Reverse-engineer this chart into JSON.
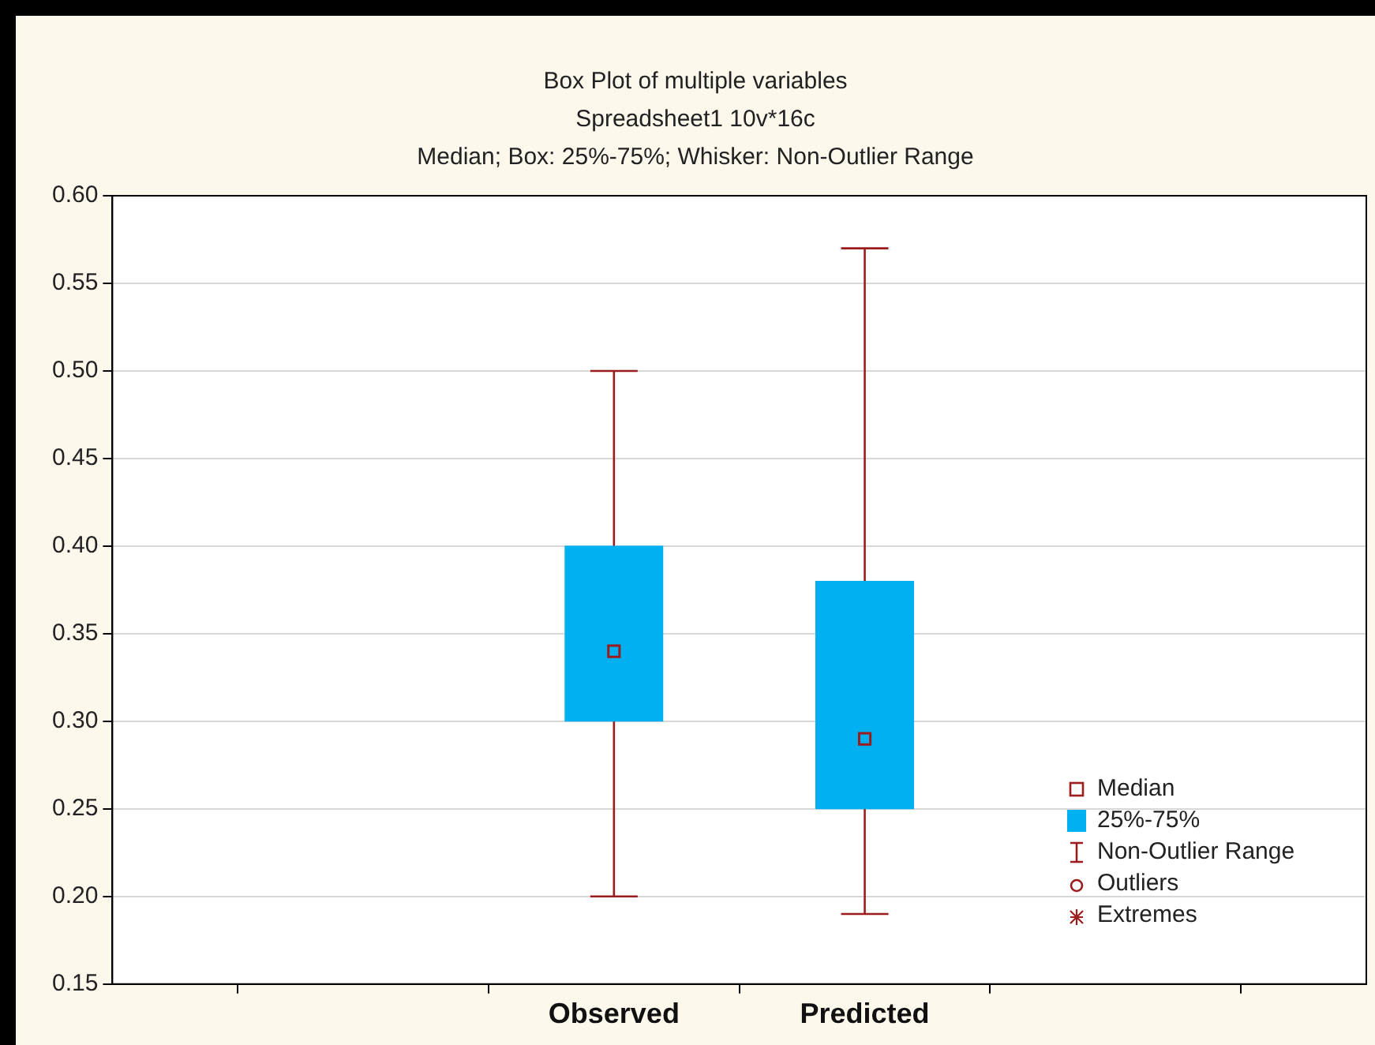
{
  "chart_data": {
    "type": "box",
    "title": "Box Plot of multiple variables",
    "subtitle": "Spreadsheet1 10v*16c",
    "annotations": [
      "Median; Box: 25%-75%; Whisker: Non-Outlier Range",
      "Median",
      "25%-75%",
      "Non-Outlier Range",
      "Outliers",
      "Extremes"
    ],
    "categories": [
      null,
      "Observed",
      "Predicted",
      null
    ],
    "series": [
      {
        "color": "#00b0f0",
        "boxes": [
          null,
          {
            "low": 0.2,
            "q1": 0.3,
            "median": 0.34,
            "q3": 0.4,
            "high": 0.5
          },
          {
            "low": 0.19,
            "q1": 0.25,
            "median": 0.29,
            "q3": 0.38,
            "high": 0.57
          },
          null
        ]
      }
    ],
    "ylim": [
      0.15,
      0.6
    ],
    "yticks": [
      {
        "value": 0.15,
        "label": "0.15"
      },
      {
        "value": 0.2,
        "label": "0.20"
      },
      {
        "value": 0.25,
        "label": "0.25"
      },
      {
        "value": 0.3,
        "label": "0.30"
      },
      {
        "value": 0.35,
        "label": "0.35"
      },
      {
        "value": 0.4,
        "label": "0.40"
      },
      {
        "value": 0.45,
        "label": "0.45"
      },
      {
        "value": 0.5,
        "label": "0.50"
      },
      {
        "value": 0.55,
        "label": "0.55"
      },
      {
        "value": 0.6,
        "label": "0.60"
      }
    ],
    "grid": "y",
    "marker": "square"
  }
}
